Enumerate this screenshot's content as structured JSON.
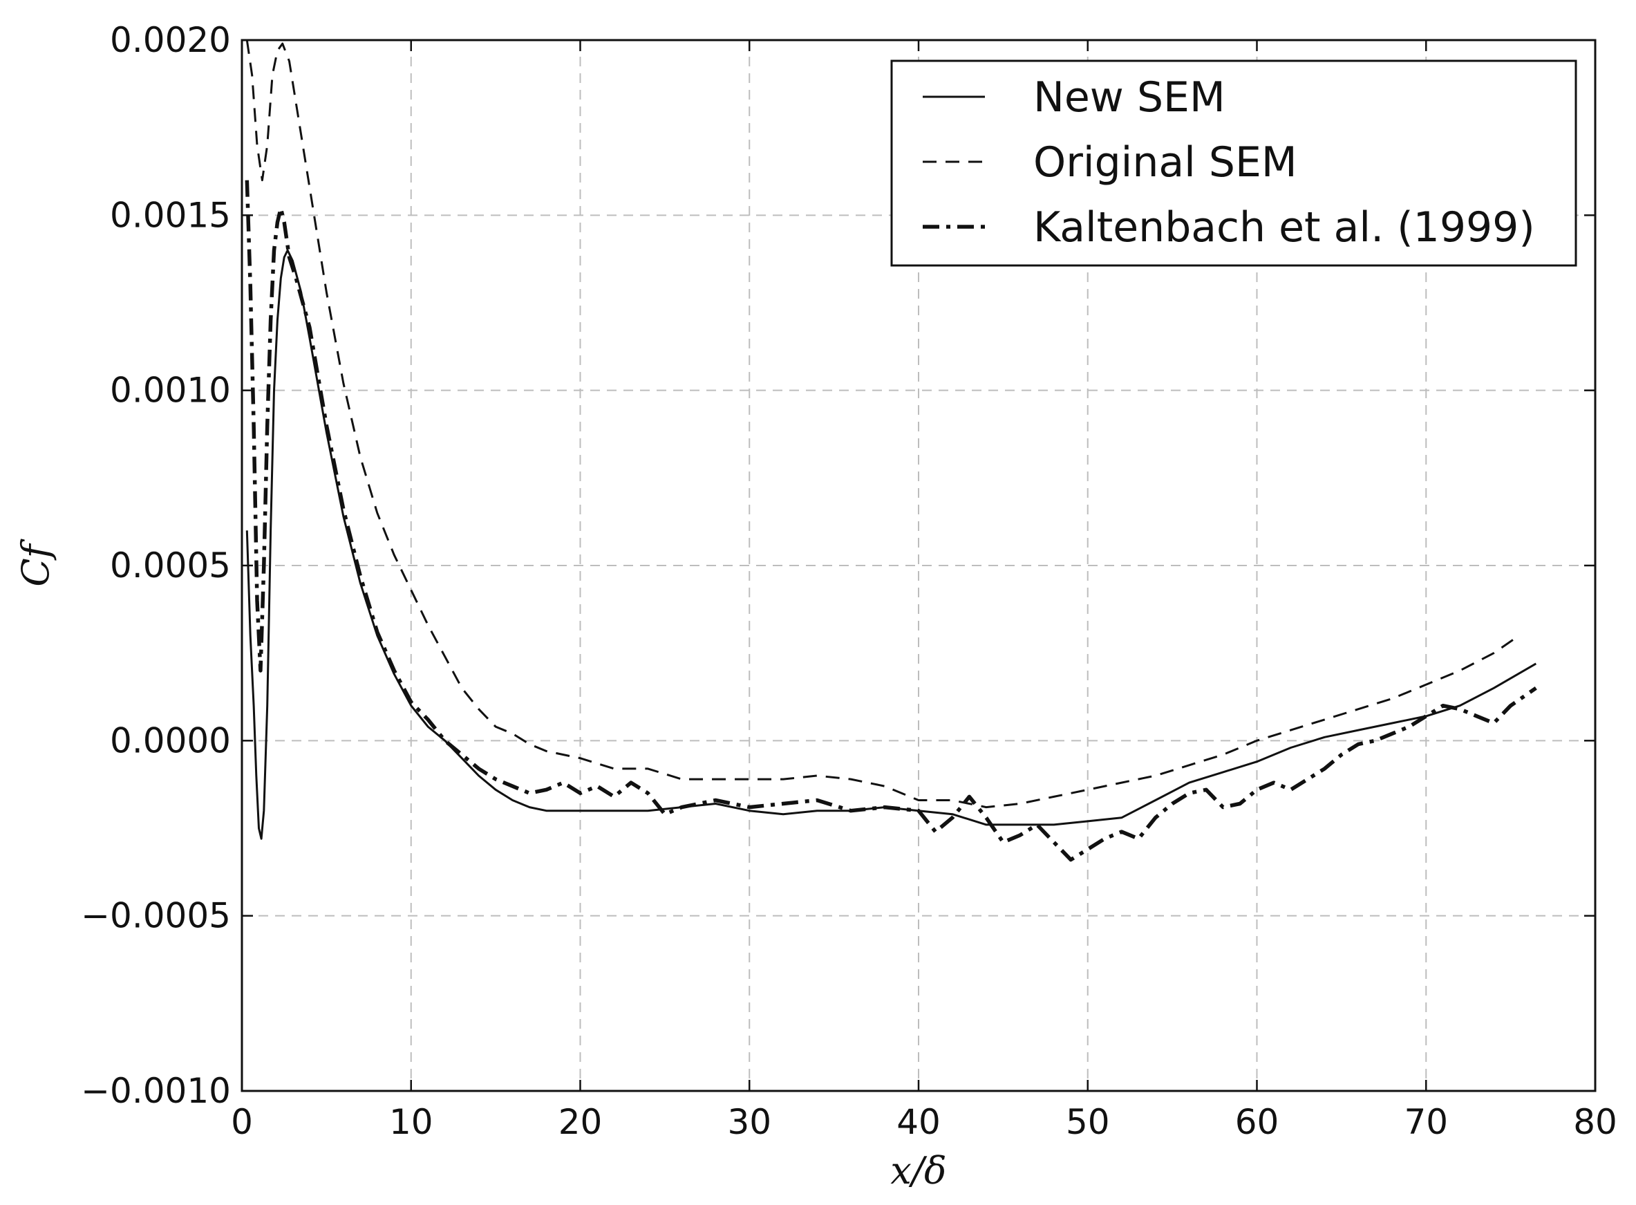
{
  "chart_data": {
    "type": "line",
    "title": "",
    "xlabel": "x/δ",
    "ylabel": "Cf",
    "xlim": [
      0,
      80
    ],
    "ylim": [
      -0.001,
      0.002
    ],
    "xticks": [
      0,
      10,
      20,
      30,
      40,
      50,
      60,
      70,
      80
    ],
    "xtick_labels": [
      "0",
      "10",
      "20",
      "30",
      "40",
      "50",
      "60",
      "70",
      "80"
    ],
    "yticks": [
      -0.001,
      -0.0005,
      0.0,
      0.0005,
      0.001,
      0.0015,
      0.002
    ],
    "ytick_labels": [
      "−0.0010",
      "−0.0005",
      "0.0000",
      "0.0005",
      "0.0010",
      "0.0015",
      "0.0020"
    ],
    "grid": true,
    "legend_position": "top-right",
    "series": [
      {
        "name": "New SEM",
        "style": "solid",
        "color": "#111111",
        "x": [
          0.3,
          0.5,
          0.7,
          0.85,
          1.0,
          1.15,
          1.3,
          1.5,
          1.7,
          1.9,
          2.1,
          2.3,
          2.5,
          2.7,
          3.0,
          3.5,
          4,
          5,
          6,
          7,
          8,
          9,
          10,
          11,
          12,
          13,
          14,
          15,
          16,
          17,
          18,
          20,
          22,
          24,
          26,
          28,
          30,
          32,
          34,
          36,
          38,
          40,
          42,
          44,
          46,
          48,
          50,
          52,
          54,
          56,
          58,
          60,
          62,
          64,
          66,
          68,
          70,
          72,
          74,
          76.5
        ],
        "y": [
          0.0006,
          0.0003,
          0.0001,
          -0.0001,
          -0.00025,
          -0.00028,
          -0.0002,
          0.0001,
          0.0006,
          0.001,
          0.0012,
          0.00132,
          0.00138,
          0.0014,
          0.00137,
          0.00128,
          0.00115,
          0.00088,
          0.00064,
          0.00045,
          0.0003,
          0.00019,
          0.0001,
          4e-05,
          0.0,
          -5e-05,
          -0.0001,
          -0.00014,
          -0.00017,
          -0.00019,
          -0.0002,
          -0.0002,
          -0.0002,
          -0.0002,
          -0.00019,
          -0.00018,
          -0.0002,
          -0.00021,
          -0.0002,
          -0.0002,
          -0.00019,
          -0.0002,
          -0.00021,
          -0.00024,
          -0.00024,
          -0.00024,
          -0.00023,
          -0.00022,
          -0.00017,
          -0.00012,
          -9e-05,
          -6e-05,
          -2e-05,
          1e-05,
          3e-05,
          5e-05,
          7e-05,
          0.0001,
          0.00015,
          0.00022
        ]
      },
      {
        "name": "Original SEM",
        "style": "dashed",
        "color": "#111111",
        "x": [
          0.3,
          0.6,
          0.9,
          1.2,
          1.5,
          1.8,
          2.1,
          2.4,
          2.8,
          3.2,
          3.6,
          4,
          5,
          6,
          7,
          8,
          9,
          10,
          11,
          12,
          13,
          14,
          15,
          16,
          17,
          18,
          20,
          22,
          24,
          26,
          28,
          30,
          32,
          34,
          36,
          38,
          40,
          42,
          44,
          46,
          48,
          50,
          52,
          54,
          56,
          58,
          60,
          62,
          64,
          66,
          68,
          70,
          72,
          74,
          75.5
        ],
        "y": [
          0.002,
          0.0019,
          0.0017,
          0.0016,
          0.0017,
          0.0019,
          0.00197,
          0.00199,
          0.00194,
          0.00182,
          0.0017,
          0.00158,
          0.00128,
          0.00102,
          0.00081,
          0.00065,
          0.00053,
          0.00043,
          0.00033,
          0.00024,
          0.00015,
          9e-05,
          4e-05,
          2e-05,
          -1e-05,
          -3e-05,
          -5e-05,
          -8e-05,
          -8e-05,
          -0.00011,
          -0.00011,
          -0.00011,
          -0.00011,
          -0.0001,
          -0.00011,
          -0.00013,
          -0.00017,
          -0.00017,
          -0.00019,
          -0.00018,
          -0.00016,
          -0.00014,
          -0.00012,
          -0.0001,
          -7e-05,
          -4e-05,
          0.0,
          3e-05,
          6e-05,
          9e-05,
          0.00012,
          0.00016,
          0.0002,
          0.00025,
          0.0003
        ]
      },
      {
        "name": "Kaltenbach et al. (1999)",
        "style": "dashdot",
        "color": "#111111",
        "x": [
          0.3,
          0.5,
          0.7,
          0.9,
          1.1,
          1.3,
          1.5,
          1.7,
          1.9,
          2.1,
          2.3,
          2.5,
          2.8,
          3.2,
          4,
          5,
          6,
          7,
          8,
          9,
          10,
          11,
          12,
          13,
          14,
          15,
          16,
          17,
          18,
          19,
          20,
          21,
          22,
          23,
          24,
          25,
          26,
          28,
          30,
          32,
          34,
          36,
          38,
          40,
          41,
          42,
          43,
          44,
          45,
          46,
          47,
          48,
          49,
          50,
          51,
          52,
          53,
          54,
          55,
          56,
          57,
          58,
          59,
          60,
          61,
          62,
          63,
          64,
          65,
          66,
          67,
          68,
          69,
          70,
          71,
          72,
          73,
          74,
          75,
          76.5
        ],
        "y": [
          0.0016,
          0.0013,
          0.0009,
          0.0004,
          0.0002,
          0.0005,
          0.0009,
          0.0012,
          0.0014,
          0.00148,
          0.00152,
          0.00148,
          0.00138,
          0.00132,
          0.00118,
          0.0009,
          0.00066,
          0.00047,
          0.00031,
          0.0002,
          0.00011,
          6e-05,
          0.0,
          -4e-05,
          -8e-05,
          -0.00011,
          -0.00013,
          -0.00015,
          -0.00014,
          -0.00012,
          -0.00015,
          -0.00013,
          -0.00016,
          -0.00012,
          -0.00015,
          -0.00021,
          -0.00019,
          -0.00017,
          -0.00019,
          -0.00018,
          -0.00017,
          -0.0002,
          -0.00019,
          -0.0002,
          -0.00026,
          -0.00022,
          -0.00016,
          -0.00022,
          -0.00029,
          -0.00027,
          -0.00024,
          -0.00029,
          -0.00034,
          -0.00031,
          -0.00028,
          -0.00026,
          -0.00028,
          -0.00022,
          -0.00018,
          -0.00015,
          -0.00014,
          -0.00019,
          -0.00018,
          -0.00014,
          -0.00012,
          -0.00014,
          -0.00011,
          -8e-05,
          -4e-05,
          -1e-05,
          0.0,
          2e-05,
          4e-05,
          7e-05,
          0.0001,
          9e-05,
          7e-05,
          5e-05,
          0.0001,
          0.00015
        ]
      }
    ]
  }
}
